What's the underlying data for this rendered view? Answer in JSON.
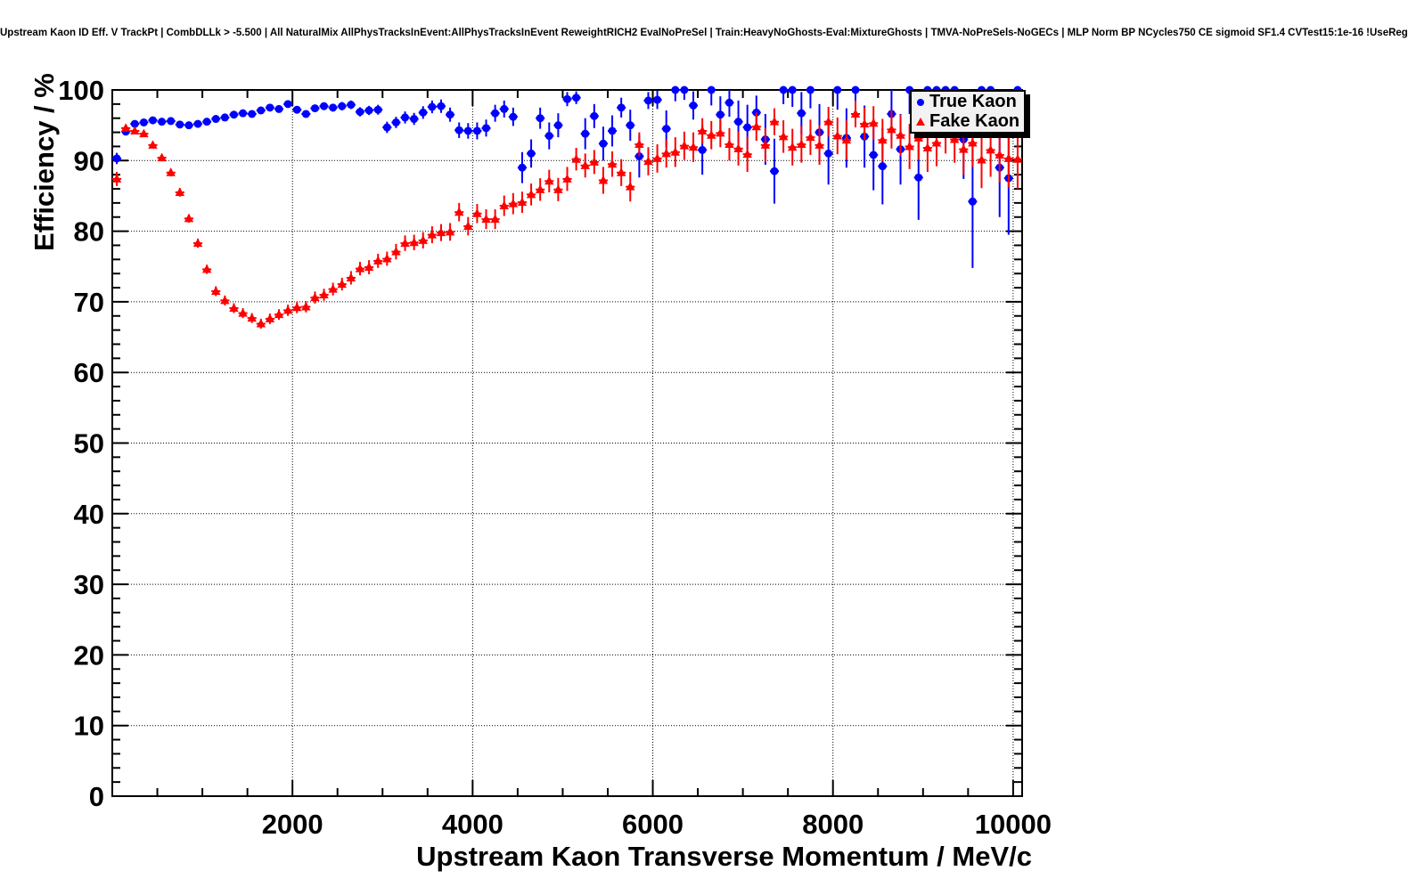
{
  "title": "Upstream Kaon ID Eff. V TrackPt | CombDLLk > -5.500 | All NaturalMix AllPhysTracksInEvent:AllPhysTracksInEvent ReweightRICH2 EvalNoPreSel | Train:HeavyNoGhosts-Eval:MixtureGhosts | TMVA-NoPreSels-NoGECs | MLP Norm BP NCycles750 CE sigmoid SF1.4 CVTest15:1e-16 !UseReg",
  "legend": {
    "position": "top-right",
    "items": [
      {
        "label": "True Kaon",
        "marker": "circle",
        "color": "#0000ff"
      },
      {
        "label": "Fake Kaon",
        "marker": "triangle",
        "color": "#ff0000"
      }
    ]
  },
  "colors": {
    "true_kaon": "#0000ff",
    "fake_kaon": "#ff0000",
    "frame": "#000000",
    "background": "#ffffff",
    "legend_fill": "#f2f2f2"
  },
  "chart_data": {
    "type": "scatter",
    "title": "Upstream Kaon ID Eff. V TrackPt | CombDLLk > -5.500 | All NaturalMix AllPhysTracksInEvent:AllPhysTracksInEvent ReweightRICH2 EvalNoPreSel | Train:HeavyNoGhosts-Eval:MixtureGhosts | TMVA-NoPreSels-NoGECs | MLP Norm BP NCycles750 CE sigmoid SF1.4 CVTest15:1e-16 !UseReg",
    "xlabel": "Upstream Kaon Transverse Momentum / MeV/c",
    "ylabel": "Efficiency / %",
    "xlim": [
      0,
      10100
    ],
    "ylim": [
      0,
      100
    ],
    "x_major_ticks": [
      2000,
      4000,
      6000,
      8000,
      10000
    ],
    "x_tick_labels": [
      "2000",
      "4000",
      "6000",
      "8000",
      "10000"
    ],
    "x_minor_step": 500,
    "y_major_ticks": [
      0,
      10,
      20,
      30,
      40,
      50,
      60,
      70,
      80,
      90,
      100
    ],
    "y_tick_labels": [
      "0",
      "10",
      "20",
      "30",
      "40",
      "50",
      "60",
      "70",
      "80",
      "90",
      "100"
    ],
    "y_minor_step": 2,
    "grid": "dotted",
    "legend_position": "top-right",
    "bin_half_width": 50,
    "series": [
      {
        "name": "True Kaon",
        "color": "#0000ff",
        "marker": "circle",
        "points": [
          [
            50,
            90.3,
            0.8
          ],
          [
            150,
            94.1,
            0.5
          ],
          [
            250,
            95.2,
            0.4
          ],
          [
            350,
            95.4,
            0.35
          ],
          [
            450,
            95.7,
            0.35
          ],
          [
            550,
            95.5,
            0.35
          ],
          [
            650,
            95.6,
            0.35
          ],
          [
            750,
            95.1,
            0.35
          ],
          [
            850,
            95.0,
            0.35
          ],
          [
            950,
            95.2,
            0.35
          ],
          [
            1050,
            95.5,
            0.35
          ],
          [
            1150,
            95.9,
            0.35
          ],
          [
            1250,
            96.1,
            0.35
          ],
          [
            1350,
            96.5,
            0.4
          ],
          [
            1450,
            96.7,
            0.4
          ],
          [
            1550,
            96.6,
            0.4
          ],
          [
            1650,
            97.1,
            0.4
          ],
          [
            1750,
            97.5,
            0.4
          ],
          [
            1850,
            97.3,
            0.45
          ],
          [
            1950,
            98.0,
            0.45
          ],
          [
            2050,
            97.2,
            0.5
          ],
          [
            2150,
            96.6,
            0.5
          ],
          [
            2250,
            97.4,
            0.5
          ],
          [
            2350,
            97.7,
            0.55
          ],
          [
            2450,
            97.5,
            0.55
          ],
          [
            2550,
            97.7,
            0.6
          ],
          [
            2650,
            97.9,
            0.6
          ],
          [
            2750,
            96.9,
            0.65
          ],
          [
            2850,
            97.1,
            0.65
          ],
          [
            2950,
            97.2,
            0.7
          ],
          [
            3050,
            94.7,
            0.8
          ],
          [
            3150,
            95.4,
            0.8
          ],
          [
            3250,
            96.1,
            0.85
          ],
          [
            3350,
            95.9,
            0.85
          ],
          [
            3450,
            96.8,
            0.9
          ],
          [
            3550,
            97.6,
            0.9
          ],
          [
            3650,
            97.7,
            0.95
          ],
          [
            3750,
            96.5,
            1.0
          ],
          [
            3850,
            94.3,
            1.1
          ],
          [
            3950,
            94.2,
            1.1
          ],
          [
            4050,
            94.2,
            1.2
          ],
          [
            4150,
            94.6,
            1.2
          ],
          [
            4250,
            96.7,
            1.2
          ],
          [
            4350,
            97.3,
            1.2
          ],
          [
            4450,
            96.2,
            1.3
          ],
          [
            4550,
            89.0,
            2.2
          ],
          [
            4650,
            91.0,
            2.0
          ],
          [
            4750,
            96.0,
            1.5
          ],
          [
            4850,
            93.5,
            1.9
          ],
          [
            4950,
            95.0,
            1.7
          ],
          [
            5050,
            98.7,
            1.0
          ],
          [
            5150,
            98.9,
            0.9
          ],
          [
            5250,
            93.8,
            2.2
          ],
          [
            5350,
            96.3,
            1.7
          ],
          [
            5450,
            92.4,
            2.4
          ],
          [
            5550,
            94.2,
            2.2
          ],
          [
            5650,
            97.5,
            1.4
          ],
          [
            5750,
            95.0,
            2.2
          ],
          [
            5850,
            90.6,
            3.0
          ],
          [
            5950,
            98.5,
            1.2
          ],
          [
            6050,
            98.6,
            1.3
          ],
          [
            6150,
            94.5,
            2.6
          ],
          [
            6250,
            100,
            1.6
          ],
          [
            6350,
            100,
            1.4
          ],
          [
            6450,
            97.8,
            2.0
          ],
          [
            6550,
            91.5,
            3.5
          ],
          [
            6650,
            100,
            2.2
          ],
          [
            6750,
            96.5,
            2.6
          ],
          [
            6850,
            98.2,
            2.0
          ],
          [
            6950,
            95.5,
            3.0
          ],
          [
            7050,
            94.7,
            3.2
          ],
          [
            7150,
            96.8,
            2.4
          ],
          [
            7250,
            93.0,
            3.6
          ],
          [
            7350,
            88.5,
            4.6
          ],
          [
            7450,
            100,
            2.0
          ],
          [
            7550,
            100,
            2.4
          ],
          [
            7650,
            96.7,
            3.0
          ],
          [
            7750,
            100,
            2.6
          ],
          [
            7850,
            94.0,
            4.0
          ],
          [
            7950,
            91.0,
            4.4
          ],
          [
            8050,
            100,
            2.8
          ],
          [
            8150,
            93.2,
            4.2
          ],
          [
            8250,
            100,
            3.0
          ],
          [
            8350,
            93.4,
            4.4
          ],
          [
            8450,
            90.8,
            5.0
          ],
          [
            8550,
            89.2,
            5.4
          ],
          [
            8650,
            96.6,
            3.6
          ],
          [
            8750,
            91.6,
            5.0
          ],
          [
            8850,
            100,
            3.4
          ],
          [
            8950,
            87.6,
            6.0
          ],
          [
            9050,
            100,
            3.6
          ],
          [
            9150,
            100,
            4.0
          ],
          [
            9250,
            100,
            4.2
          ],
          [
            9350,
            100,
            4.4
          ],
          [
            9450,
            93.0,
            5.6
          ],
          [
            9550,
            84.2,
            9.4
          ],
          [
            9650,
            100,
            4.6
          ],
          [
            9750,
            100,
            5.0
          ],
          [
            9850,
            89.0,
            7.0
          ],
          [
            9950,
            87.5,
            8.0
          ],
          [
            10050,
            100,
            5.2
          ]
        ]
      },
      {
        "name": "Fake Kaon",
        "color": "#ff0000",
        "marker": "triangle",
        "points": [
          [
            50,
            87.4,
            1.0
          ],
          [
            150,
            94.6,
            0.5
          ],
          [
            250,
            94.2,
            0.45
          ],
          [
            350,
            93.8,
            0.45
          ],
          [
            450,
            92.2,
            0.5
          ],
          [
            550,
            90.4,
            0.5
          ],
          [
            650,
            88.3,
            0.55
          ],
          [
            750,
            85.5,
            0.6
          ],
          [
            850,
            81.8,
            0.6
          ],
          [
            950,
            78.3,
            0.65
          ],
          [
            1050,
            74.6,
            0.65
          ],
          [
            1150,
            71.5,
            0.7
          ],
          [
            1250,
            70.2,
            0.7
          ],
          [
            1350,
            69.1,
            0.7
          ],
          [
            1450,
            68.4,
            0.7
          ],
          [
            1550,
            67.7,
            0.7
          ],
          [
            1650,
            66.9,
            0.7
          ],
          [
            1750,
            67.6,
            0.75
          ],
          [
            1850,
            68.2,
            0.75
          ],
          [
            1950,
            68.8,
            0.8
          ],
          [
            2050,
            69.2,
            0.8
          ],
          [
            2150,
            69.3,
            0.8
          ],
          [
            2250,
            70.6,
            0.85
          ],
          [
            2350,
            71.0,
            0.85
          ],
          [
            2450,
            71.8,
            0.9
          ],
          [
            2550,
            72.5,
            0.9
          ],
          [
            2650,
            73.4,
            0.95
          ],
          [
            2750,
            74.7,
            0.95
          ],
          [
            2850,
            74.9,
            1.0
          ],
          [
            2950,
            75.8,
            1.0
          ],
          [
            3050,
            76.1,
            1.0
          ],
          [
            3150,
            77.1,
            1.1
          ],
          [
            3250,
            78.3,
            1.1
          ],
          [
            3350,
            78.4,
            1.1
          ],
          [
            3450,
            78.7,
            1.15
          ],
          [
            3550,
            79.5,
            1.2
          ],
          [
            3650,
            79.8,
            1.2
          ],
          [
            3750,
            79.9,
            1.25
          ],
          [
            3850,
            82.7,
            1.3
          ],
          [
            3950,
            80.7,
            1.3
          ],
          [
            4050,
            82.5,
            1.35
          ],
          [
            4150,
            81.7,
            1.4
          ],
          [
            4250,
            81.7,
            1.4
          ],
          [
            4350,
            83.6,
            1.45
          ],
          [
            4450,
            83.9,
            1.5
          ],
          [
            4550,
            84.1,
            1.5
          ],
          [
            4650,
            85.2,
            1.55
          ],
          [
            4750,
            85.9,
            1.6
          ],
          [
            4850,
            87.1,
            1.6
          ],
          [
            4950,
            85.9,
            1.65
          ],
          [
            5050,
            87.4,
            1.7
          ],
          [
            5150,
            90.2,
            1.6
          ],
          [
            5250,
            89.3,
            1.7
          ],
          [
            5350,
            89.8,
            1.7
          ],
          [
            5450,
            87.2,
            1.9
          ],
          [
            5550,
            89.5,
            1.8
          ],
          [
            5650,
            88.3,
            1.9
          ],
          [
            5750,
            86.3,
            2.1
          ],
          [
            5850,
            92.3,
            1.7
          ],
          [
            5950,
            89.9,
            2.0
          ],
          [
            6050,
            90.3,
            2.0
          ],
          [
            6150,
            91.0,
            2.0
          ],
          [
            6250,
            91.2,
            2.1
          ],
          [
            6350,
            92.1,
            2.0
          ],
          [
            6450,
            91.9,
            2.1
          ],
          [
            6550,
            94.2,
            1.8
          ],
          [
            6650,
            93.6,
            2.0
          ],
          [
            6750,
            93.9,
            2.0
          ],
          [
            6850,
            92.3,
            2.3
          ],
          [
            6950,
            91.7,
            2.4
          ],
          [
            7050,
            90.9,
            2.5
          ],
          [
            7150,
            94.8,
            2.0
          ],
          [
            7250,
            92.2,
            2.4
          ],
          [
            7350,
            95.5,
            1.9
          ],
          [
            7450,
            93.4,
            2.3
          ],
          [
            7550,
            91.9,
            2.6
          ],
          [
            7650,
            92.3,
            2.6
          ],
          [
            7750,
            93.3,
            2.5
          ],
          [
            7850,
            92.2,
            2.8
          ],
          [
            7950,
            95.5,
            2.1
          ],
          [
            8050,
            93.5,
            2.6
          ],
          [
            8150,
            92.9,
            2.8
          ],
          [
            8250,
            96.6,
            1.9
          ],
          [
            8350,
            95.2,
            2.3
          ],
          [
            8450,
            95.3,
            2.4
          ],
          [
            8550,
            92.9,
            3.0
          ],
          [
            8650,
            94.4,
            2.7
          ],
          [
            8750,
            93.6,
            2.9
          ],
          [
            8850,
            92.0,
            3.2
          ],
          [
            8950,
            93.2,
            3.1
          ],
          [
            9050,
            91.8,
            3.4
          ],
          [
            9150,
            92.5,
            3.3
          ],
          [
            9250,
            94.0,
            3.0
          ],
          [
            9350,
            93.0,
            3.3
          ],
          [
            9450,
            91.6,
            3.6
          ],
          [
            9550,
            92.5,
            3.4
          ],
          [
            9650,
            90.1,
            4.0
          ],
          [
            9750,
            91.5,
            3.8
          ],
          [
            9850,
            90.8,
            3.9
          ],
          [
            9950,
            90.3,
            4.1
          ],
          [
            10050,
            90.2,
            4.2
          ]
        ]
      }
    ]
  }
}
